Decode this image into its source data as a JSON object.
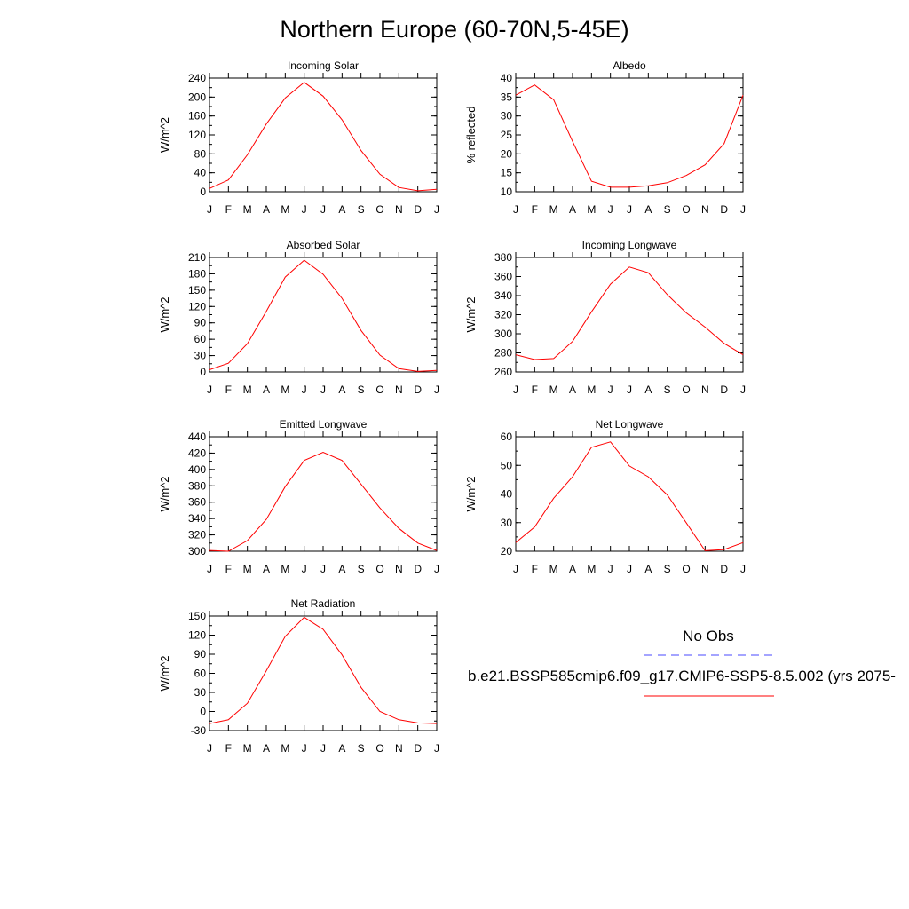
{
  "title": "Northern Europe (60-70N,5-45E)",
  "months": [
    "J",
    "F",
    "M",
    "A",
    "M",
    "J",
    "J",
    "A",
    "S",
    "O",
    "N",
    "D",
    "J"
  ],
  "legend": {
    "obs_label": "No Obs",
    "obs_color": "#4a4aff",
    "model_label": "b.e21.BSSP585cmip6.f09_g17.CMIP6-SSP5-8.5.002 (yrs 2075-",
    "model_color": "#ff0000"
  },
  "chart_data": [
    {
      "type": "line",
      "title": "Incoming Solar",
      "ylabel": "W/m^2",
      "ylim": [
        0,
        240
      ],
      "yticks": [
        0,
        40,
        80,
        120,
        160,
        200,
        240
      ],
      "yminor": 20,
      "categories": [
        "J",
        "F",
        "M",
        "A",
        "M",
        "J",
        "J",
        "A",
        "S",
        "O",
        "N",
        "D",
        "J"
      ],
      "values": [
        7,
        25,
        78,
        143,
        198,
        231,
        202,
        152,
        87,
        37,
        9,
        2,
        5
      ]
    },
    {
      "type": "line",
      "title": "Albedo",
      "ylabel": "% reflected",
      "ylim": [
        10,
        40
      ],
      "yticks": [
        10,
        15,
        20,
        25,
        30,
        35,
        40
      ],
      "yminor": 2.5,
      "categories": [
        "J",
        "F",
        "M",
        "A",
        "M",
        "J",
        "J",
        "A",
        "S",
        "O",
        "N",
        "D",
        "J"
      ],
      "values": [
        35.5,
        38.2,
        34.3,
        23.3,
        12.8,
        11.2,
        11.2,
        11.6,
        12.4,
        14.3,
        17.1,
        22.7,
        35.5
      ]
    },
    {
      "type": "line",
      "title": "Absorbed Solar",
      "ylabel": "W/m^2",
      "ylim": [
        0,
        210
      ],
      "yticks": [
        0,
        30,
        60,
        90,
        120,
        150,
        180,
        210
      ],
      "yminor": 15,
      "categories": [
        "J",
        "F",
        "M",
        "A",
        "M",
        "J",
        "J",
        "A",
        "S",
        "O",
        "N",
        "D",
        "J"
      ],
      "values": [
        4,
        16,
        52,
        111,
        174,
        205,
        179,
        135,
        76,
        31,
        6,
        1,
        3
      ]
    },
    {
      "type": "line",
      "title": "Incoming Longwave",
      "ylabel": "W/m^2",
      "ylim": [
        260,
        380
      ],
      "yticks": [
        260,
        280,
        300,
        320,
        340,
        360,
        380
      ],
      "yminor": 10,
      "categories": [
        "J",
        "F",
        "M",
        "A",
        "M",
        "J",
        "J",
        "A",
        "S",
        "O",
        "N",
        "D",
        "J"
      ],
      "values": [
        278,
        273,
        274,
        292,
        323,
        352,
        370,
        364,
        341,
        322,
        307,
        290,
        278
      ]
    },
    {
      "type": "line",
      "title": "Emitted Longwave",
      "ylabel": "W/m^2",
      "ylim": [
        300,
        440
      ],
      "yticks": [
        300,
        320,
        340,
        360,
        380,
        400,
        420,
        440
      ],
      "yminor": 10,
      "categories": [
        "J",
        "F",
        "M",
        "A",
        "M",
        "J",
        "J",
        "A",
        "S",
        "O",
        "N",
        "D",
        "J"
      ],
      "values": [
        301,
        300,
        313,
        339,
        379,
        411,
        421,
        411,
        382,
        353,
        328,
        310,
        301
      ]
    },
    {
      "type": "line",
      "title": "Net Longwave",
      "ylabel": "W/m^2",
      "ylim": [
        20,
        60
      ],
      "yticks": [
        20,
        30,
        40,
        50,
        60
      ],
      "yminor": 5,
      "categories": [
        "J",
        "F",
        "M",
        "A",
        "M",
        "J",
        "J",
        "A",
        "S",
        "O",
        "N",
        "D",
        "J"
      ],
      "values": [
        23,
        28.5,
        38.5,
        46,
        56.3,
        58.2,
        49.8,
        46,
        39.7,
        30,
        20.2,
        20.6,
        23
      ]
    },
    {
      "type": "line",
      "title": "Net Radiation",
      "ylabel": "W/m^2",
      "ylim": [
        -30,
        150
      ],
      "yticks": [
        -30,
        0,
        30,
        60,
        90,
        120,
        150
      ],
      "yminor": 15,
      "categories": [
        "J",
        "F",
        "M",
        "A",
        "M",
        "J",
        "J",
        "A",
        "S",
        "O",
        "N",
        "D",
        "J"
      ],
      "values": [
        -19,
        -13,
        13,
        64,
        118,
        148,
        129,
        89,
        38,
        0,
        -13,
        -18,
        -19
      ]
    }
  ]
}
